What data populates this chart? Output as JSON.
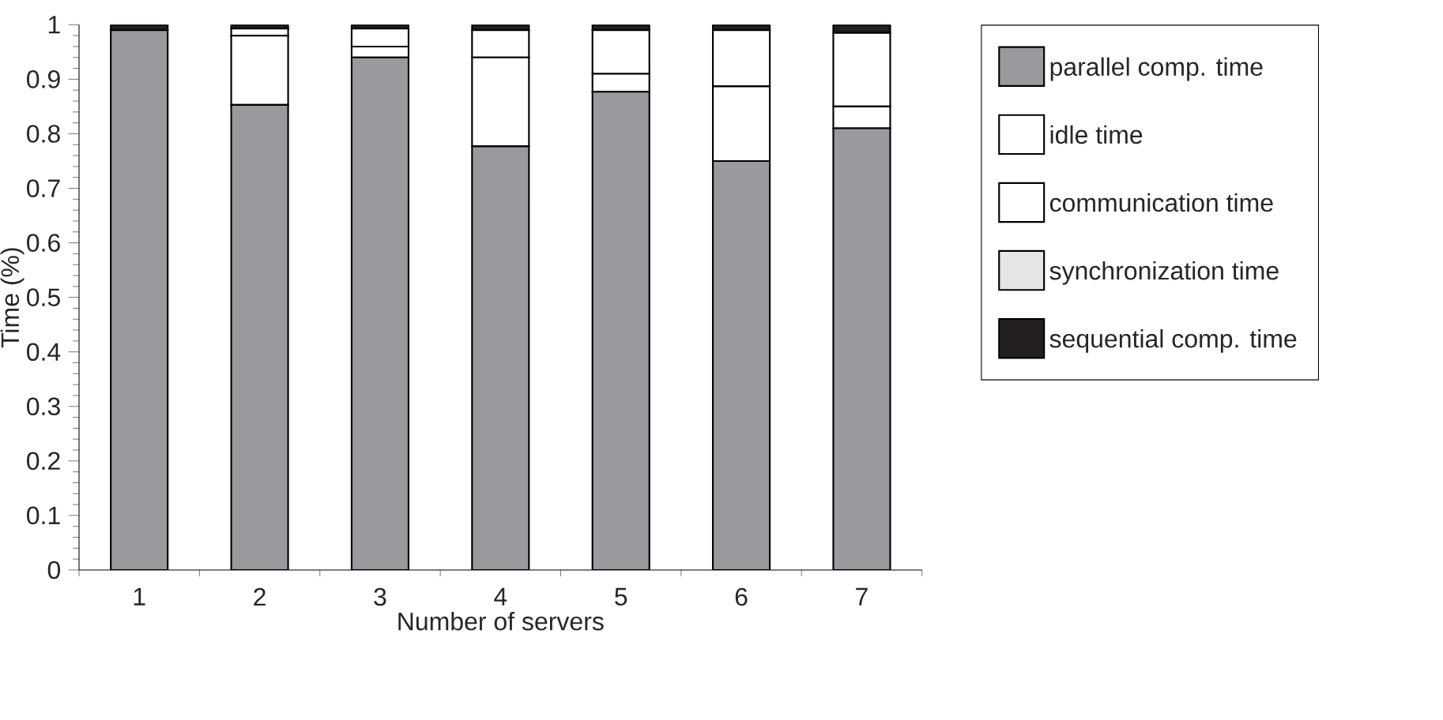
{
  "chart_data": {
    "type": "bar",
    "stacked": true,
    "xlabel": "Number of servers",
    "ylabel": "Time (%)",
    "categories": [
      "1",
      "2",
      "3",
      "4",
      "5",
      "6",
      "7"
    ],
    "series": [
      {
        "name": "parallel comp. time",
        "color": "#9a9a9e",
        "values": [
          0.99,
          0.853,
          0.94,
          0.777,
          0.877,
          0.75,
          0.81
        ]
      },
      {
        "name": "idle time",
        "color": "#ffffff",
        "values": [
          0,
          0.127,
          0.02,
          0.163,
          0.033,
          0.137,
          0.04
        ]
      },
      {
        "name": "communication time",
        "color": "#ffffff",
        "values": [
          0,
          0.013,
          0.033,
          0.05,
          0.08,
          0.103,
          0.135
        ]
      },
      {
        "name": "synchronization time",
        "color": "#e6e6e6",
        "values": [
          0,
          0,
          0,
          0,
          0,
          0,
          0
        ]
      },
      {
        "name": "sequential comp. time",
        "color": "#231f20",
        "values": [
          0.01,
          0.007,
          0.007,
          0.01,
          0.01,
          0.01,
          0.015
        ]
      }
    ],
    "ylim": [
      0,
      1
    ],
    "yticks": [
      0,
      0.1,
      0.2,
      0.3,
      0.4,
      0.5,
      0.6,
      0.7,
      0.8,
      0.9,
      1
    ],
    "grid": false,
    "legend": "right"
  }
}
